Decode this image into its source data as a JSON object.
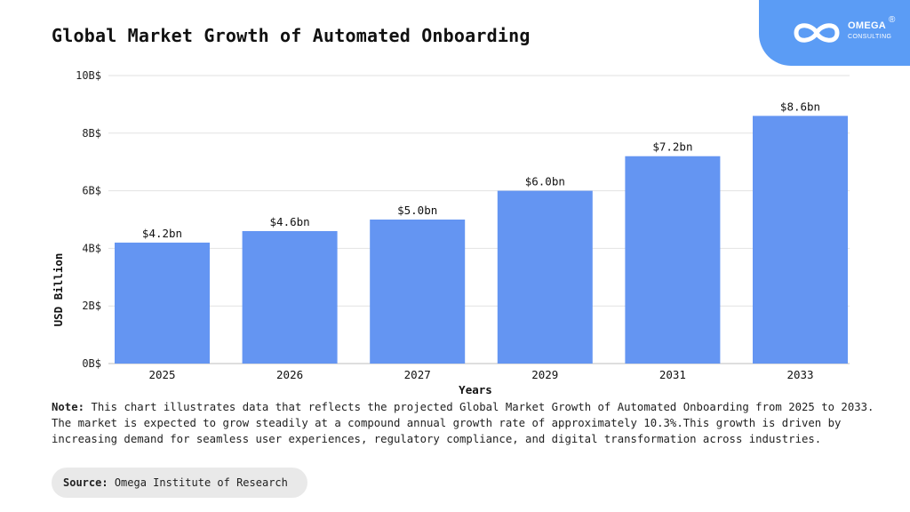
{
  "title": "Global Market Growth of Automated Onboarding",
  "logo": {
    "name": "OMEGA",
    "sub": "CONSULTING",
    "reg": "®",
    "icon": "infinity-icon",
    "panel_color": "#5b9cf5"
  },
  "note": {
    "label": "Note:",
    "text": "This chart illustrates data that reflects the projected Global Market Growth of Automated Onboarding from 2025 to 2033. The market is expected to grow steadily at a compound annual growth rate of approximately 10.3%.This growth is driven by increasing demand for seamless user experiences, regulatory compliance, and digital transformation across industries."
  },
  "source": {
    "label": "Source:",
    "text": "Omega Institute of Research"
  },
  "chart_data": {
    "type": "bar",
    "categories": [
      "2025",
      "2026",
      "2027",
      "2029",
      "2031",
      "2033"
    ],
    "values": [
      4.2,
      4.6,
      5.0,
      6.0,
      7.2,
      8.6
    ],
    "data_labels": [
      "$4.2bn",
      "$4.6bn",
      "$5.0bn",
      "$6.0bn",
      "$7.2bn",
      "$8.6bn"
    ],
    "xlabel": "Years",
    "ylabel": "USD Billion",
    "ylim": [
      0,
      10
    ],
    "yticks": [
      0,
      2,
      4,
      6,
      8,
      10
    ],
    "ytick_labels": [
      "0B$",
      "2B$",
      "4B$",
      "6B$",
      "8B$",
      "10B$"
    ],
    "grid": true,
    "bar_color": "#6495f2"
  }
}
